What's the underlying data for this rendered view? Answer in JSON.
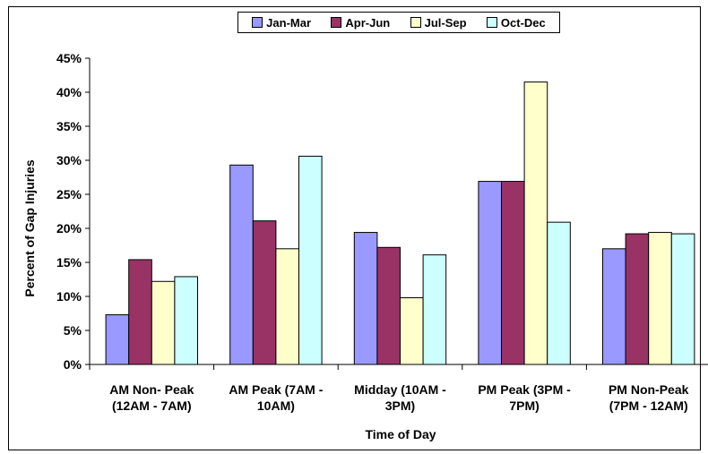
{
  "chart_data": {
    "type": "bar",
    "title": "",
    "xlabel": "Time of Day",
    "ylabel": "Percent of Gap Injuries",
    "ylim": [
      0,
      45
    ],
    "y_ticks": [
      "0%",
      "5%",
      "10%",
      "15%",
      "20%",
      "25%",
      "30%",
      "35%",
      "40%",
      "45%"
    ],
    "grid": false,
    "legend_position": "top",
    "categories": [
      [
        "AM Non- Peak",
        "(12AM - 7AM)"
      ],
      [
        "AM Peak (7AM -",
        "10AM)"
      ],
      [
        "Midday (10AM -",
        "3PM)"
      ],
      [
        "PM Peak (3PM -",
        "7PM)"
      ],
      [
        "PM Non-Peak",
        "(7PM - 12AM)"
      ]
    ],
    "series": [
      {
        "name": "Jan-Mar",
        "color": "#9999ff",
        "values": [
          7.3,
          29.3,
          19.4,
          26.9,
          17.0
        ]
      },
      {
        "name": "Apr-Jun",
        "color": "#993366",
        "values": [
          15.4,
          21.1,
          17.2,
          26.9,
          19.2
        ]
      },
      {
        "name": "Jul-Sep",
        "color": "#ffffcc",
        "values": [
          12.2,
          17.0,
          9.8,
          41.5,
          19.4
        ]
      },
      {
        "name": "Oct-Dec",
        "color": "#ccffff",
        "values": [
          12.9,
          30.6,
          16.1,
          20.9,
          19.2
        ]
      }
    ]
  }
}
